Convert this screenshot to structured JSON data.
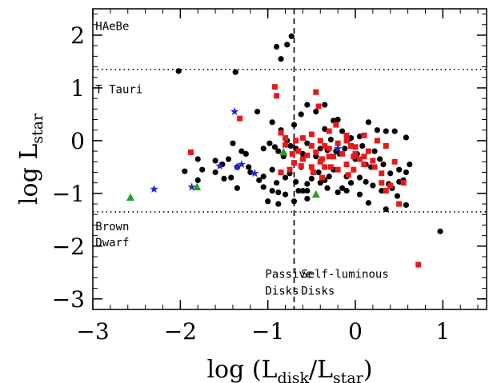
{
  "chart_data": {
    "type": "scatter",
    "title": "",
    "xlabel_parts": [
      "log (L",
      "disk",
      "/L",
      "star",
      ")"
    ],
    "ylabel_parts": [
      "log  L",
      "star"
    ],
    "xlim": [
      -3,
      1.5
    ],
    "ylim": [
      -3.2,
      2.5
    ],
    "x_ticks": [
      -3,
      -2,
      -1,
      0,
      1
    ],
    "y_ticks": [
      -3,
      -2,
      -1,
      0,
      1,
      2
    ],
    "x_ticks_labels": [
      "−3",
      "−2",
      "−1",
      "0",
      "1"
    ],
    "y_ticks_labels": [
      "−3",
      "−2",
      "−1",
      "0",
      "1",
      "2"
    ],
    "grid": false,
    "reference_lines": {
      "horizontal_dotted": [
        1.35,
        -1.35
      ],
      "vertical_dashed": -0.7
    },
    "annotations": [
      {
        "text": "HAeBe",
        "x": -2.97,
        "y": 2.1
      },
      {
        "text": "T Tauri",
        "x": -2.97,
        "y": 0.9
      },
      {
        "text": "Brown",
        "x": -2.97,
        "y": -1.7
      },
      {
        "text": "Dwarf",
        "x": -2.97,
        "y": -2.0
      },
      {
        "text": "Passive",
        "x": -1.03,
        "y": -2.6
      },
      {
        "text": "Disks",
        "x": -1.03,
        "y": -2.92
      },
      {
        "text": "Self-luminous",
        "x": -0.62,
        "y": -2.6
      },
      {
        "text": "Disks",
        "x": -0.62,
        "y": -2.92
      }
    ],
    "colors": {
      "black": "#000000",
      "red": "#e8191c",
      "blue": "#2626d8",
      "green": "#22a022"
    },
    "series": [
      {
        "marker": "circle",
        "color": "#000000",
        "x": [
          -0.73,
          -0.9,
          -0.85,
          -0.78,
          -2.02,
          -1.37,
          -0.35,
          -0.2,
          -1.95,
          -1.52,
          -1.22,
          -1.12,
          -0.95,
          -0.85,
          -0.7,
          -0.62,
          -0.55,
          -0.45,
          -0.35,
          -0.25,
          -0.15,
          -0.05,
          0.05,
          0.15,
          0.25,
          0.35,
          0.45,
          0.58,
          0.62,
          -1.8,
          -1.75,
          -1.6,
          -1.45,
          -1.4,
          -1.3,
          -1.25,
          -1.05,
          -0.98,
          -0.92,
          -0.88,
          -0.82,
          -0.78,
          -0.74,
          -0.68,
          -0.65,
          -0.6,
          -0.55,
          -0.5,
          -0.45,
          -0.4,
          -0.32,
          -0.28,
          -0.22,
          -0.18,
          -0.12,
          -0.08,
          0.0,
          0.02,
          0.08,
          0.12,
          0.18,
          0.22,
          0.28,
          0.32,
          0.4,
          0.5,
          0.55,
          0.58,
          -1.8,
          -1.6,
          -1.42,
          -1.35,
          -1.2,
          -1.05,
          -0.95,
          -0.9,
          -0.8,
          -0.75,
          -0.68,
          -0.62,
          -0.55,
          -0.5,
          -0.42,
          -0.35,
          -0.3,
          -0.25,
          -0.15,
          -0.1,
          -0.05,
          0.05,
          0.12,
          0.2,
          0.3,
          0.38,
          0.42,
          0.5,
          -0.95,
          -0.6,
          -0.32,
          -0.1,
          -1.35,
          -1.05,
          -0.88,
          -0.8,
          -0.65,
          -0.55,
          -0.2,
          0.05,
          0.48,
          0.58,
          0.97,
          -1.0,
          -0.88,
          -0.7,
          -0.55,
          -1.5,
          -1.1,
          -0.4,
          0.15,
          0.35
        ],
        "y": [
          1.98,
          1.78,
          1.55,
          1.82,
          1.32,
          1.3,
          0.68,
          0.4,
          -0.58,
          -0.45,
          -0.5,
          0.55,
          0.35,
          0.2,
          0.3,
          0.5,
          0.68,
          0.55,
          0.22,
          0.38,
          0.18,
          0.05,
          0.08,
          0.35,
          0.2,
          0.18,
          0.18,
          0.06,
          -0.45,
          -0.35,
          -0.55,
          -0.38,
          -0.35,
          -0.05,
          -0.2,
          -0.25,
          -0.15,
          -0.05,
          -0.12,
          -0.2,
          -0.3,
          0.0,
          -0.1,
          -0.15,
          -0.2,
          -0.25,
          -0.05,
          -0.1,
          -0.3,
          -0.15,
          -0.18,
          0.02,
          -0.2,
          -0.25,
          -0.15,
          0.02,
          -0.35,
          -0.25,
          -0.1,
          -0.45,
          -0.5,
          -0.2,
          -0.35,
          -0.45,
          -0.62,
          -0.55,
          -0.75,
          -0.6,
          -0.75,
          -0.6,
          -0.7,
          -0.5,
          -0.6,
          -0.68,
          -0.55,
          -0.8,
          -0.7,
          -0.62,
          -0.78,
          -0.5,
          -0.82,
          -0.72,
          -0.6,
          -0.75,
          -0.68,
          -0.55,
          -0.9,
          -0.68,
          -0.8,
          -0.7,
          -0.78,
          -0.85,
          -0.95,
          -0.82,
          -0.9,
          -0.78,
          -0.95,
          -0.95,
          -0.9,
          -0.95,
          -0.9,
          -0.88,
          -0.98,
          -1.02,
          -0.95,
          -0.95,
          -0.98,
          -1.02,
          -1.05,
          -1.22,
          -1.72,
          -1.15,
          -1.2,
          -1.15,
          -1.1,
          -0.72,
          -0.75,
          -0.8,
          -1.18,
          -1.3
        ]
      },
      {
        "marker": "square",
        "color": "#e8191c",
        "x": [
          -0.92,
          -0.9,
          -0.45,
          -0.42,
          -0.85,
          -0.22,
          -1.32,
          -1.88,
          -0.8,
          -0.68,
          -0.6,
          -0.5,
          -0.4,
          -0.3,
          -0.2,
          -0.1,
          0.0,
          0.1,
          -0.65,
          -0.55,
          -0.45,
          -0.35,
          -0.25,
          -0.15,
          -0.05,
          0.05,
          0.15,
          0.25,
          0.35,
          -0.7,
          -0.6,
          -0.5,
          -0.4,
          -0.3,
          -0.2,
          -0.1,
          0.0,
          0.1,
          0.2,
          0.3,
          0.45,
          -0.75,
          -0.62,
          -0.48,
          -0.38,
          -0.28,
          -0.08,
          0.22,
          0.3,
          -0.02,
          -0.72,
          -0.6,
          -0.35,
          0.55,
          -0.85,
          -0.65,
          -0.8,
          -0.5,
          -0.1,
          -0.3,
          -0.38,
          0.1,
          0.35,
          0.5,
          0.05,
          0.72,
          0.4,
          -0.02
        ],
        "y": [
          1.02,
          0.85,
          0.92,
          0.65,
          0.15,
          0.3,
          0.42,
          -0.22,
          -0.08,
          0.0,
          0.05,
          -0.1,
          0.0,
          -0.15,
          -0.05,
          0.0,
          -0.12,
          0.1,
          -0.2,
          -0.28,
          -0.22,
          -0.1,
          -0.3,
          -0.25,
          -0.1,
          -0.35,
          -0.2,
          0.0,
          -0.1,
          -0.42,
          -0.35,
          -0.5,
          -0.4,
          -0.3,
          -0.55,
          -0.45,
          -0.25,
          -0.45,
          -0.38,
          -0.62,
          -0.4,
          -0.55,
          -0.48,
          -0.6,
          -0.35,
          -0.5,
          -0.65,
          -0.5,
          -0.8,
          -0.3,
          -0.25,
          -0.35,
          -0.5,
          -0.8,
          -0.6,
          -0.2,
          0.05,
          0.12,
          0.1,
          0.18,
          -0.7,
          -0.3,
          -0.95,
          -1.2,
          -0.35,
          -2.35,
          -0.85,
          -0.55
        ]
      },
      {
        "marker": "star",
        "color": "#2626d8",
        "x": [
          -2.3,
          -1.87,
          -1.55,
          -1.38,
          -1.35,
          -1.3,
          -1.15,
          -0.2
        ],
        "y": [
          -0.92,
          -0.88,
          -0.48,
          0.55,
          -0.5,
          -0.45,
          -0.62,
          -0.15
        ]
      },
      {
        "marker": "triangle",
        "color": "#22a022",
        "x": [
          -2.57,
          -1.81,
          -0.82,
          -0.45
        ],
        "y": [
          -1.08,
          -0.88,
          -0.22,
          -1.02
        ]
      }
    ]
  }
}
